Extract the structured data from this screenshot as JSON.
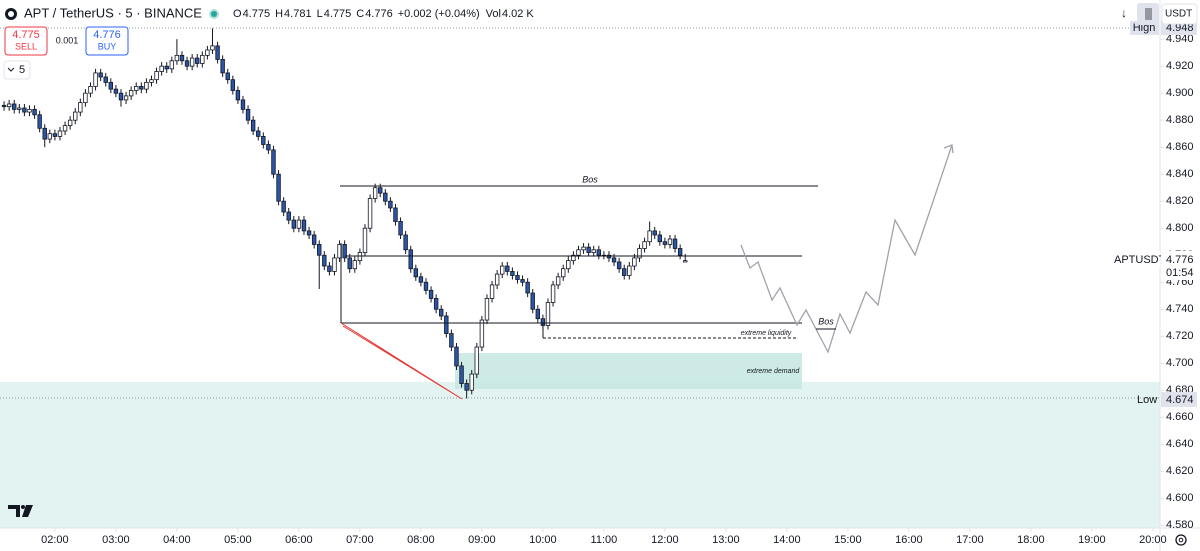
{
  "header": {
    "symbol": "APT / TetherUS · 5 · BINANCE",
    "ohlc": [
      {
        "label": "O",
        "value": "4.775"
      },
      {
        "label": "H",
        "value": "4.781"
      },
      {
        "label": "L",
        "value": "4.775"
      },
      {
        "label": "C",
        "value": "4.776"
      }
    ],
    "change": "+0.002 (+0.04%)",
    "volume_label": "Vol",
    "volume": "4.02 K"
  },
  "trade": {
    "sell_price": "4.775",
    "sell": "SELL",
    "spread": "0.001",
    "buy_price": "4.776",
    "buy": "BUY"
  },
  "interval": "5",
  "currency": "USDT",
  "price_tags": {
    "high_label": "High",
    "high": "4.948",
    "low_label": "Low",
    "low": "4.674",
    "symbol": "APTUSDT",
    "last": "4.776",
    "countdown": "01:54"
  },
  "chart_data": {
    "type": "candlestick",
    "x": [
      "01:10",
      "01:15",
      "01:20",
      "01:25",
      "01:30",
      "01:35",
      "01:40",
      "01:45",
      "01:50",
      "01:55",
      "02:00",
      "02:05",
      "02:10",
      "02:15",
      "02:20",
      "02:25",
      "02:30",
      "02:35",
      "02:40",
      "02:45",
      "02:50",
      "02:55",
      "03:00",
      "03:05",
      "03:10",
      "03:15",
      "03:20",
      "03:25",
      "03:30",
      "03:35",
      "03:40",
      "03:45",
      "03:50",
      "03:55",
      "04:00",
      "04:05",
      "04:10",
      "04:15",
      "04:20",
      "04:25",
      "04:30",
      "04:35",
      "04:40",
      "04:45",
      "04:50",
      "04:55",
      "05:00",
      "05:05",
      "05:10",
      "05:15",
      "05:20",
      "05:25",
      "05:30",
      "05:35",
      "05:40",
      "05:45",
      "05:50",
      "05:55",
      "06:00",
      "06:05",
      "06:10",
      "06:15",
      "06:20",
      "06:25",
      "06:30",
      "06:35",
      "06:40",
      "06:45",
      "06:50",
      "06:55",
      "07:00",
      "07:05",
      "07:10",
      "07:15",
      "07:20",
      "07:25",
      "07:30",
      "07:35",
      "07:40",
      "07:45",
      "07:50",
      "07:55",
      "08:00",
      "08:05",
      "08:10",
      "08:15",
      "08:20",
      "08:25",
      "08:30",
      "08:35",
      "08:40",
      "08:45",
      "08:50",
      "08:55",
      "09:00",
      "09:05",
      "09:10",
      "09:15",
      "09:20",
      "09:25",
      "09:30",
      "09:35",
      "09:40",
      "09:45",
      "09:50",
      "09:55",
      "10:00",
      "10:05",
      "10:10",
      "10:15",
      "10:20",
      "10:25",
      "10:30",
      "10:35",
      "10:40",
      "10:45",
      "10:50",
      "10:55",
      "11:00",
      "11:05",
      "11:10",
      "11:15",
      "11:20",
      "11:25",
      "11:30",
      "11:35",
      "11:40",
      "11:45",
      "11:50",
      "11:55",
      "12:00",
      "12:05",
      "12:10",
      "12:15",
      "12:20"
    ],
    "open": [
      4.891,
      4.89,
      4.892,
      4.888,
      4.889,
      4.886,
      4.888,
      4.884,
      4.874,
      4.866,
      4.87,
      4.868,
      4.872,
      4.876,
      4.88,
      4.886,
      4.893,
      4.9,
      4.905,
      4.915,
      4.912,
      4.908,
      4.903,
      4.9,
      4.895,
      4.898,
      4.902,
      4.905,
      4.903,
      4.908,
      4.91,
      4.916,
      4.92,
      4.918,
      4.924,
      4.928,
      4.924,
      4.92,
      4.926,
      4.922,
      4.928,
      4.932,
      4.935,
      4.925,
      4.915,
      4.91,
      4.902,
      4.895,
      4.888,
      4.88,
      4.872,
      4.868,
      4.862,
      4.858,
      4.84,
      4.82,
      4.812,
      4.806,
      4.8,
      4.806,
      4.798,
      4.795,
      4.788,
      4.78,
      4.772,
      4.768,
      4.778,
      4.788,
      4.778,
      4.77,
      4.776,
      4.782,
      4.8,
      4.822,
      4.83,
      4.826,
      4.82,
      4.815,
      4.805,
      4.795,
      4.784,
      4.77,
      4.764,
      4.76,
      4.754,
      4.748,
      4.74,
      4.735,
      4.722,
      4.712,
      4.698,
      4.685,
      4.68,
      4.692,
      4.712,
      4.732,
      4.748,
      4.758,
      4.766,
      4.772,
      4.768,
      4.765,
      4.762,
      4.76,
      4.752,
      4.74,
      4.733,
      4.728,
      4.745,
      4.758,
      4.764,
      4.77,
      4.776,
      4.78,
      4.784,
      4.786,
      4.782,
      4.784,
      4.78,
      4.78,
      4.778,
      4.775,
      4.77,
      4.765,
      4.772,
      4.778,
      4.785,
      4.79,
      4.798,
      4.795,
      4.79,
      4.788,
      4.792,
      4.785,
      4.775
    ],
    "high": [
      4.894,
      4.895,
      4.895,
      4.892,
      4.892,
      4.891,
      4.891,
      4.887,
      4.877,
      4.873,
      4.873,
      4.875,
      4.879,
      4.883,
      4.889,
      4.896,
      4.903,
      4.908,
      4.918,
      4.918,
      4.915,
      4.911,
      4.906,
      4.903,
      4.901,
      4.905,
      4.908,
      4.908,
      4.911,
      4.913,
      4.919,
      4.923,
      4.923,
      4.927,
      4.94,
      4.931,
      4.927,
      4.929,
      4.929,
      4.931,
      4.935,
      4.948,
      4.938,
      4.928,
      4.918,
      4.913,
      4.905,
      4.898,
      4.891,
      4.883,
      4.875,
      4.871,
      4.865,
      4.861,
      4.843,
      4.823,
      4.815,
      4.809,
      4.809,
      4.809,
      4.801,
      4.798,
      4.791,
      4.783,
      4.775,
      4.781,
      4.791,
      4.791,
      4.781,
      4.779,
      4.785,
      4.803,
      4.825,
      4.833,
      4.833,
      4.829,
      4.823,
      4.818,
      4.808,
      4.798,
      4.787,
      4.773,
      4.767,
      4.763,
      4.757,
      4.751,
      4.743,
      4.738,
      4.725,
      4.715,
      4.701,
      4.688,
      4.695,
      4.715,
      4.735,
      4.751,
      4.761,
      4.769,
      4.775,
      4.775,
      4.771,
      4.768,
      4.765,
      4.763,
      4.755,
      4.743,
      4.736,
      4.748,
      4.761,
      4.767,
      4.773,
      4.779,
      4.783,
      4.787,
      4.789,
      4.789,
      4.787,
      4.787,
      4.783,
      4.783,
      4.781,
      4.778,
      4.773,
      4.775,
      4.781,
      4.788,
      4.793,
      4.805,
      4.801,
      4.798,
      4.793,
      4.795,
      4.795,
      4.788,
      4.781
    ],
    "low": [
      4.887,
      4.887,
      4.885,
      4.885,
      4.883,
      4.883,
      4.881,
      4.871,
      4.86,
      4.863,
      4.865,
      4.865,
      4.869,
      4.873,
      4.877,
      4.883,
      4.89,
      4.897,
      4.902,
      4.909,
      4.905,
      4.9,
      4.897,
      4.89,
      4.892,
      4.895,
      4.899,
      4.9,
      4.9,
      4.905,
      4.907,
      4.913,
      4.915,
      4.915,
      4.921,
      4.921,
      4.917,
      4.917,
      4.919,
      4.919,
      4.925,
      4.929,
      4.922,
      4.912,
      4.907,
      4.899,
      4.892,
      4.885,
      4.877,
      4.869,
      4.865,
      4.859,
      4.855,
      4.837,
      4.817,
      4.809,
      4.803,
      4.797,
      4.797,
      4.795,
      4.792,
      4.785,
      4.755,
      4.769,
      4.765,
      4.765,
      4.775,
      4.775,
      4.767,
      4.767,
      4.773,
      4.779,
      4.797,
      4.819,
      4.823,
      4.817,
      4.812,
      4.802,
      4.792,
      4.781,
      4.767,
      4.761,
      4.757,
      4.751,
      4.745,
      4.737,
      4.732,
      4.719,
      4.709,
      4.695,
      4.682,
      4.674,
      4.677,
      4.689,
      4.709,
      4.729,
      4.745,
      4.755,
      4.763,
      4.765,
      4.762,
      4.759,
      4.757,
      4.749,
      4.737,
      4.73,
      4.725,
      4.725,
      4.742,
      4.755,
      4.761,
      4.767,
      4.773,
      4.777,
      4.781,
      4.779,
      4.779,
      4.777,
      4.777,
      4.775,
      4.772,
      4.767,
      4.762,
      4.762,
      4.769,
      4.775,
      4.782,
      4.787,
      4.792,
      4.787,
      4.785,
      4.785,
      4.782,
      4.777,
      4.775
    ],
    "close": [
      4.89,
      4.892,
      4.888,
      4.889,
      4.886,
      4.888,
      4.884,
      4.874,
      4.866,
      4.87,
      4.868,
      4.872,
      4.876,
      4.88,
      4.886,
      4.893,
      4.9,
      4.905,
      4.915,
      4.912,
      4.908,
      4.903,
      4.9,
      4.895,
      4.898,
      4.902,
      4.905,
      4.903,
      4.908,
      4.91,
      4.916,
      4.92,
      4.918,
      4.924,
      4.928,
      4.924,
      4.92,
      4.926,
      4.922,
      4.928,
      4.932,
      4.935,
      4.925,
      4.915,
      4.91,
      4.902,
      4.895,
      4.888,
      4.88,
      4.872,
      4.868,
      4.862,
      4.858,
      4.84,
      4.82,
      4.812,
      4.806,
      4.8,
      4.806,
      4.798,
      4.795,
      4.788,
      4.78,
      4.772,
      4.768,
      4.778,
      4.788,
      4.778,
      4.77,
      4.776,
      4.782,
      4.8,
      4.822,
      4.83,
      4.826,
      4.82,
      4.815,
      4.805,
      4.795,
      4.784,
      4.77,
      4.764,
      4.76,
      4.754,
      4.748,
      4.74,
      4.735,
      4.722,
      4.712,
      4.698,
      4.685,
      4.68,
      4.692,
      4.712,
      4.732,
      4.748,
      4.758,
      4.766,
      4.772,
      4.768,
      4.765,
      4.762,
      4.76,
      4.752,
      4.74,
      4.733,
      4.728,
      4.745,
      4.758,
      4.764,
      4.77,
      4.776,
      4.78,
      4.784,
      4.786,
      4.782,
      4.784,
      4.78,
      4.78,
      4.778,
      4.775,
      4.77,
      4.765,
      4.772,
      4.778,
      4.785,
      4.79,
      4.798,
      4.795,
      4.79,
      4.788,
      4.792,
      4.785,
      4.78,
      4.776
    ],
    "up_color": "#ffffff",
    "down_color": "#2b55a6",
    "wick_color": "#131722",
    "xlim": [
      "01:06",
      "20:07"
    ],
    "xticks": [
      "02:00",
      "03:00",
      "04:00",
      "05:00",
      "06:00",
      "07:00",
      "08:00",
      "09:00",
      "10:00",
      "11:00",
      "12:00",
      "13:00",
      "14:00",
      "15:00",
      "16:00",
      "17:00",
      "18:00",
      "19:00",
      "20:00"
    ],
    "ylim": [
      4.578,
      4.969
    ],
    "yticks": [
      {
        "value": 4.94,
        "label": "4.940"
      },
      {
        "value": 4.92,
        "label": "4.920"
      },
      {
        "value": 4.9,
        "label": "4.900"
      },
      {
        "value": 4.88,
        "label": "4.880"
      },
      {
        "value": 4.86,
        "label": "4.860"
      },
      {
        "value": 4.84,
        "label": "4.840"
      },
      {
        "value": 4.82,
        "label": "4.820"
      },
      {
        "value": 4.8,
        "label": "4.800"
      },
      {
        "value": 4.78,
        "label": "4.780"
      },
      {
        "value": 4.76,
        "label": "4.760"
      },
      {
        "value": 4.74,
        "label": "4.740"
      },
      {
        "value": 4.72,
        "label": "4.720"
      },
      {
        "value": 4.7,
        "label": "4.700"
      },
      {
        "value": 4.68,
        "label": "4.680"
      },
      {
        "value": 4.66,
        "label": "4.660"
      },
      {
        "value": 4.64,
        "label": "4.640"
      },
      {
        "value": 4.62,
        "label": "4.620"
      },
      {
        "value": 4.6,
        "label": "4.600"
      },
      {
        "value": 4.58,
        "label": "4.580"
      }
    ],
    "grid": false,
    "annotations": [
      "Bos",
      "extreme liquidity",
      "Bos",
      "extreme demand"
    ]
  }
}
